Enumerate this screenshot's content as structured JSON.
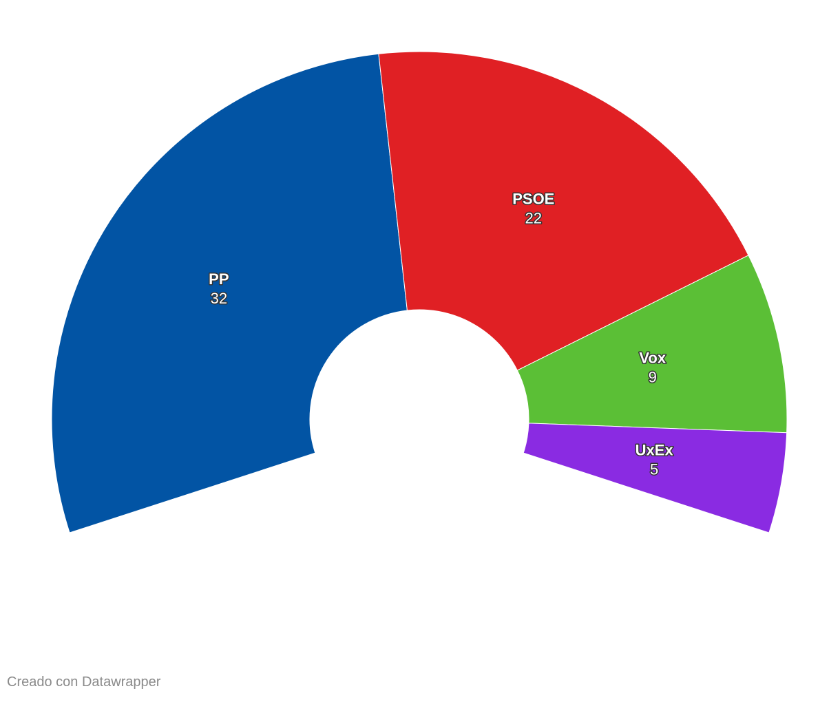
{
  "chart_data": {
    "type": "parliament",
    "categories": [
      "PP",
      "PSOE",
      "Vox",
      "UxEx"
    ],
    "values": [
      32,
      22,
      9,
      5
    ],
    "colors": [
      "#0254a4",
      "#e02024",
      "#5bbf36",
      "#8a2be2"
    ]
  },
  "footer": "Creado con Datawrapper"
}
